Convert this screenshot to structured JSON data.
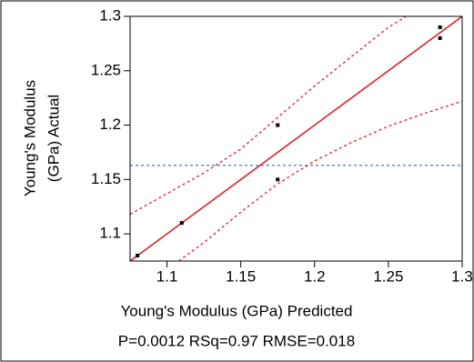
{
  "chart_data": {
    "type": "scatter",
    "xlabel": "Young's Modulus (GPa) Predicted",
    "ylabel": [
      "Young's Modulus",
      "(GPa) Actual"
    ],
    "subtitle": "P=0.0012 RSq=0.97 RMSE=0.018",
    "xlim": [
      1.075,
      1.3
    ],
    "ylim": [
      1.075,
      1.3
    ],
    "xticks": [
      1.1,
      1.15,
      1.2,
      1.25,
      1.3
    ],
    "yticks": [
      1.1,
      1.15,
      1.2,
      1.25,
      1.3
    ],
    "points": {
      "color": "#000000",
      "x": [
        1.08,
        1.11,
        1.175,
        1.175,
        1.285,
        1.285
      ],
      "y": [
        1.08,
        1.11,
        1.2,
        1.15,
        1.29,
        1.28
      ]
    },
    "fit_line": {
      "color": "#e0202a",
      "x": [
        1.075,
        1.3
      ],
      "y": [
        1.075,
        1.3
      ]
    },
    "upper_band": {
      "color": "#e0202a",
      "x": [
        1.075,
        1.1,
        1.125,
        1.15,
        1.175,
        1.2,
        1.225,
        1.25,
        1.262
      ],
      "y": [
        1.118,
        1.137,
        1.156,
        1.178,
        1.207,
        1.236,
        1.263,
        1.29,
        1.3
      ]
    },
    "lower_band": {
      "color": "#e0202a",
      "x": [
        1.108,
        1.125,
        1.15,
        1.175,
        1.2,
        1.225,
        1.25,
        1.275,
        1.3
      ],
      "y": [
        1.075,
        1.092,
        1.12,
        1.146,
        1.167,
        1.184,
        1.199,
        1.211,
        1.222
      ]
    },
    "mean_line": 1.163,
    "mean_color": "#3060e0"
  }
}
